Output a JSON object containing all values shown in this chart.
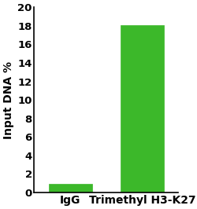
{
  "categories": [
    "IgG",
    "Trimethyl H3-K27"
  ],
  "values": [
    0.95,
    18.1
  ],
  "bar_color": "#3cb82a",
  "bar_edge_color": "#3cb82a",
  "ylabel": "Input DNA %",
  "ylim": [
    0,
    20
  ],
  "yticks": [
    0,
    2,
    4,
    6,
    8,
    10,
    12,
    14,
    16,
    18,
    20
  ],
  "ylabel_fontsize": 10,
  "tick_fontsize": 9.5,
  "xlabel_fontsize": 10,
  "bar_width": 0.6,
  "bar_positions": [
    0.25,
    0.75
  ],
  "background_color": "#ffffff",
  "spine_color": "#000000",
  "figsize": [
    2.5,
    2.66
  ],
  "dpi": 100
}
